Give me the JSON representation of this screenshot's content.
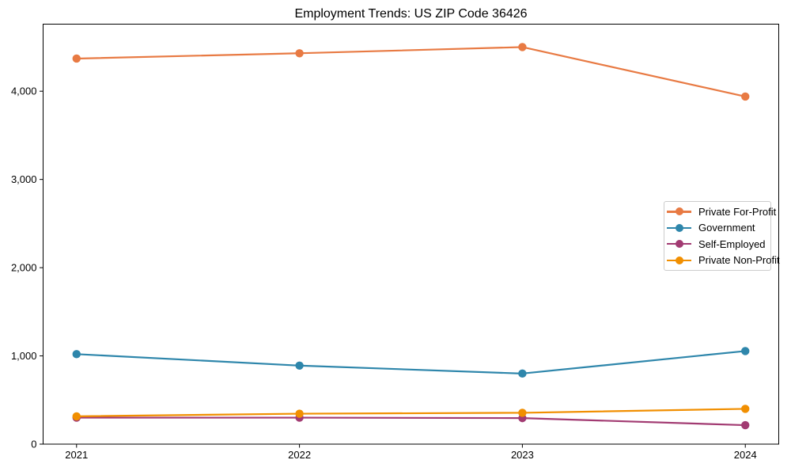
{
  "chart_data": {
    "type": "line",
    "title": "Employment Trends: US ZIP Code 36426",
    "x_categories": [
      "2021",
      "2022",
      "2023",
      "2024"
    ],
    "series": [
      {
        "name": "Private For-Profit",
        "color": "#E87A43",
        "values": [
          4370,
          4430,
          4500,
          3940
        ]
      },
      {
        "name": "Government",
        "color": "#2E86AB",
        "values": [
          1020,
          890,
          800,
          1055
        ]
      },
      {
        "name": "Self-Employed",
        "color": "#A23B72",
        "values": [
          300,
          300,
          295,
          215
        ]
      },
      {
        "name": "Private Non-Profit",
        "color": "#F18F01",
        "values": [
          315,
          345,
          355,
          400
        ]
      }
    ],
    "xlabel": "",
    "ylabel": "",
    "ylim": [
      0,
      4760
    ],
    "yticks": [
      0,
      1000,
      2000,
      3000,
      4000
    ],
    "ytick_labels": [
      "0",
      "1,000",
      "2,000",
      "3,000",
      "4,000"
    ],
    "grid": false,
    "marker": "circle",
    "legend_position": "center-right",
    "axis_color": "#000000",
    "text_color": "#000000",
    "background_color": "#ffffff"
  }
}
